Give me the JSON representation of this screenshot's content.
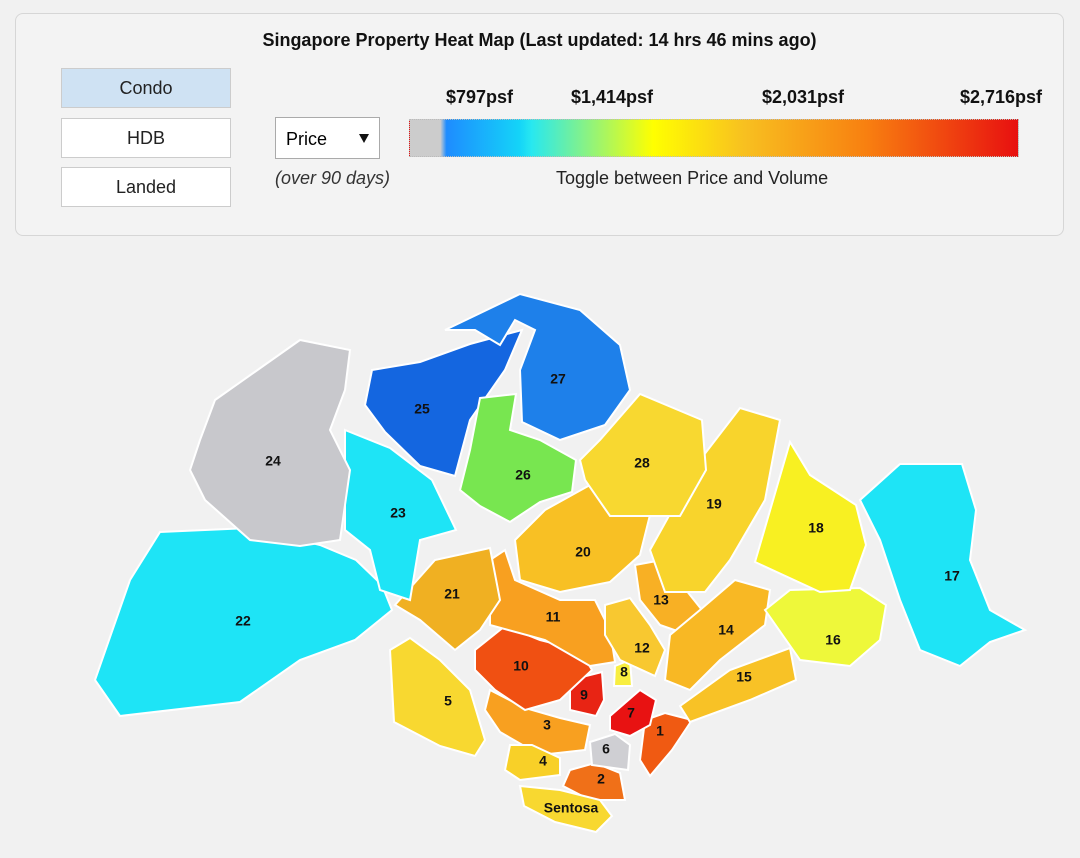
{
  "header": {
    "title": "Singapore Property Heat Map (Last updated: 14 hrs 46 mins ago)"
  },
  "property_types": [
    "Condo",
    "HDB",
    "Landed"
  ],
  "metric": {
    "selected": "Price",
    "note": "(over 90 days)"
  },
  "legend": {
    "labels": [
      "$797psf",
      "$1,414psf",
      "$2,031psf",
      "$2,716psf"
    ],
    "caption": "Toggle between Price and Volume"
  },
  "districts": [
    {
      "label": "1",
      "color": "#f05a12"
    },
    {
      "label": "2",
      "color": "#f07018"
    },
    {
      "label": "3",
      "color": "#f8a020"
    },
    {
      "label": "4",
      "color": "#f8d028"
    },
    {
      "label": "5",
      "color": "#f8d830"
    },
    {
      "label": "6",
      "color": "#cfcfd3"
    },
    {
      "label": "7",
      "color": "#e81212"
    },
    {
      "label": "8",
      "color": "#f8ee40"
    },
    {
      "label": "9",
      "color": "#e82414"
    },
    {
      "label": "10",
      "color": "#f05012"
    },
    {
      "label": "11",
      "color": "#f8a020"
    },
    {
      "label": "12",
      "color": "#f8c830"
    },
    {
      "label": "13",
      "color": "#f8b024"
    },
    {
      "label": "14",
      "color": "#f8b824"
    },
    {
      "label": "15",
      "color": "#f8c226"
    },
    {
      "label": "16",
      "color": "#eef83a"
    },
    {
      "label": "17",
      "color": "#1ee4f6"
    },
    {
      "label": "18",
      "color": "#f8f022"
    },
    {
      "label": "19",
      "color": "#f8d42c"
    },
    {
      "label": "20",
      "color": "#f8c024"
    },
    {
      "label": "21",
      "color": "#f0b022"
    },
    {
      "label": "22",
      "color": "#1ee4f6"
    },
    {
      "label": "23",
      "color": "#1ee4f6"
    },
    {
      "label": "24",
      "color": "#c8c8cc"
    },
    {
      "label": "25",
      "color": "#1466e0"
    },
    {
      "label": "26",
      "color": "#78e650"
    },
    {
      "label": "27",
      "color": "#1e80ea"
    },
    {
      "label": "28",
      "color": "#f8d830"
    },
    {
      "label": "Sentosa",
      "color": "#f8d830"
    }
  ]
}
